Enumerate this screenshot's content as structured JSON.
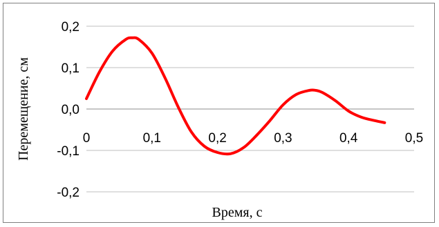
{
  "chart_data": {
    "type": "line",
    "title": "",
    "xlabel": "Время, с",
    "ylabel": "Перемещение, см",
    "xlim": [
      0,
      0.5
    ],
    "ylim": [
      -0.2,
      0.2
    ],
    "x_ticks": [
      "0",
      "0,1",
      "0,2",
      "0,3",
      "0,4",
      "0,5"
    ],
    "y_ticks": [
      "0,2",
      "0,1",
      "0,0",
      "-0,1",
      "-0,2"
    ],
    "grid": "horizontal",
    "legend": "none",
    "series": [
      {
        "color": "#ff0000",
        "x": [
          0,
          0.02,
          0.04,
          0.06,
          0.07,
          0.08,
          0.1,
          0.12,
          0.14,
          0.16,
          0.18,
          0.2,
          0.22,
          0.24,
          0.26,
          0.28,
          0.3,
          0.32,
          0.34,
          0.35,
          0.36,
          0.38,
          0.4,
          0.42,
          0.44,
          0.455
        ],
        "y": [
          0.025,
          0.09,
          0.14,
          0.168,
          0.172,
          0.168,
          0.135,
          0.075,
          0.005,
          -0.055,
          -0.09,
          -0.105,
          -0.108,
          -0.093,
          -0.063,
          -0.028,
          0.01,
          0.035,
          0.045,
          0.045,
          0.04,
          0.02,
          -0.005,
          -0.02,
          -0.028,
          -0.033
        ]
      }
    ]
  }
}
